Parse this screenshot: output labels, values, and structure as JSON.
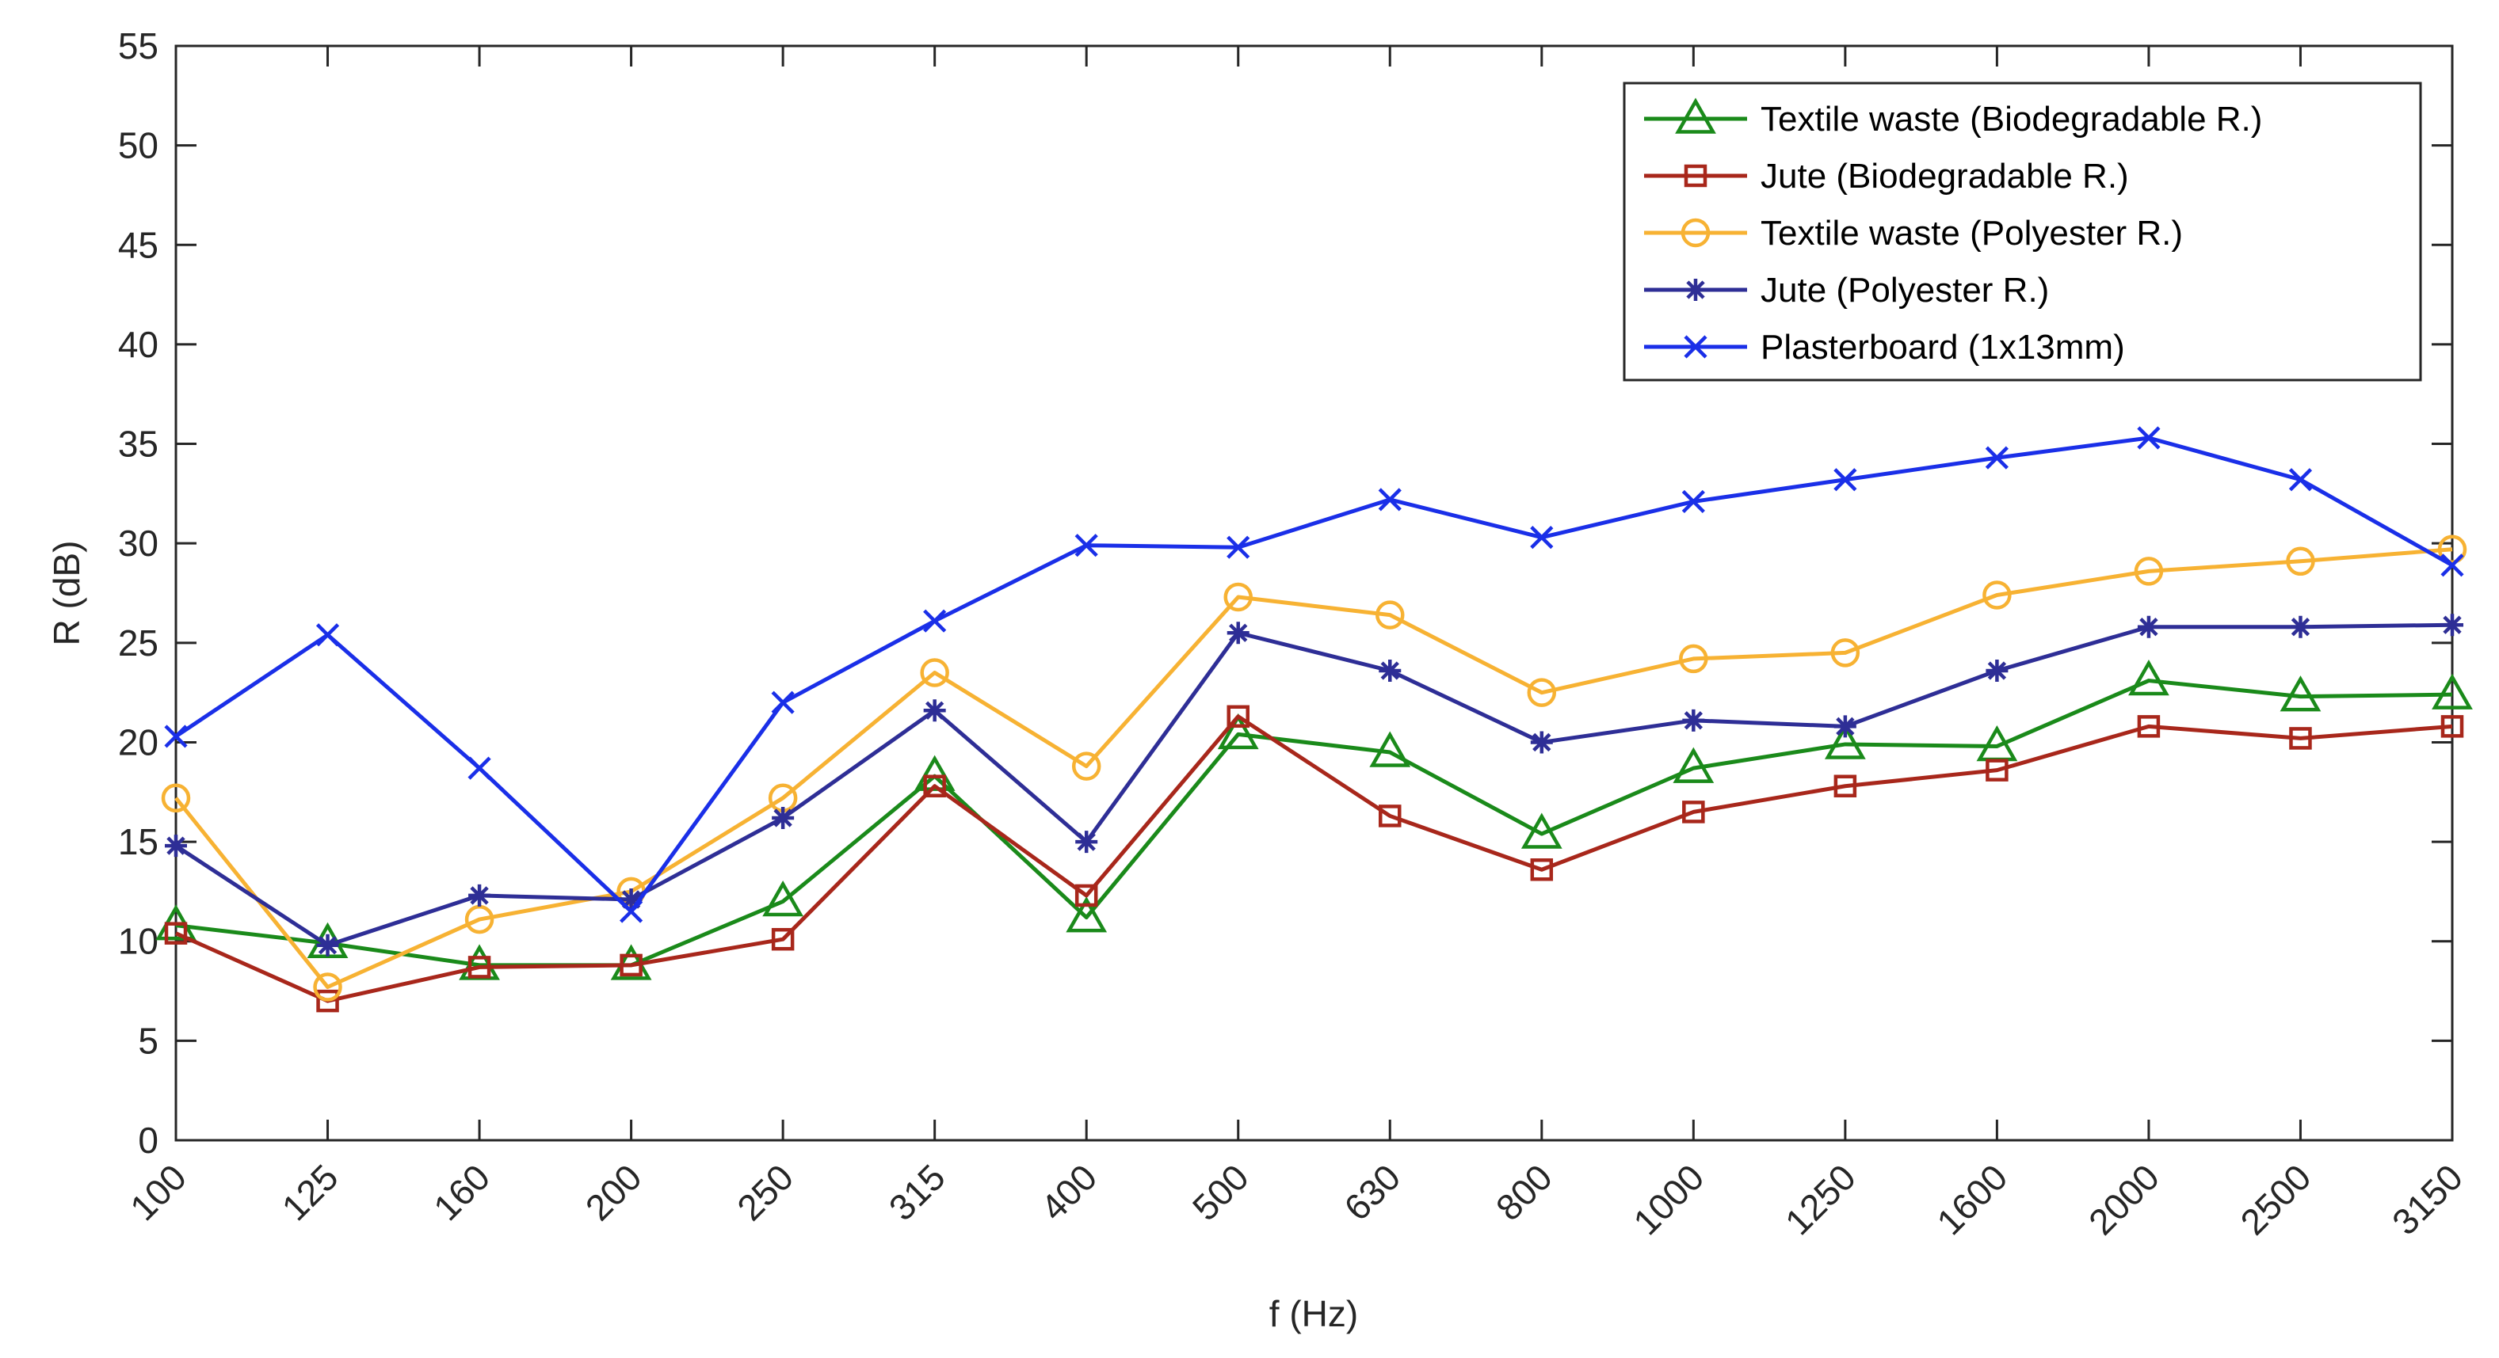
{
  "chart_data": {
    "type": "line",
    "title": "",
    "xlabel": "f (Hz)",
    "ylabel": "R (dB)",
    "ylim": [
      0,
      55
    ],
    "yticks": [
      0,
      5,
      10,
      15,
      20,
      25,
      30,
      35,
      40,
      45,
      50,
      55
    ],
    "grid": false,
    "legend_position": "top-right",
    "categories": [
      "100",
      "125",
      "160",
      "200",
      "250",
      "315",
      "400",
      "500",
      "630",
      "800",
      "1000",
      "1250",
      "1600",
      "2000",
      "2500",
      "3150"
    ],
    "series": [
      {
        "name": "Textile waste (Biodegradable R.)",
        "color": "#1a8a1a",
        "marker": "triangle",
        "values": [
          10.8,
          9.9,
          8.8,
          8.8,
          12.0,
          18.3,
          11.2,
          20.4,
          19.5,
          15.4,
          18.7,
          19.9,
          19.8,
          23.1,
          22.3,
          22.4
        ]
      },
      {
        "name": "Jute (Biodegradable R.)",
        "color": "#a8271b",
        "marker": "square",
        "values": [
          10.4,
          7.0,
          8.7,
          8.8,
          10.1,
          17.8,
          12.3,
          21.3,
          16.3,
          13.6,
          16.5,
          17.8,
          18.6,
          20.8,
          20.2,
          20.8
        ]
      },
      {
        "name": "Textile waste (Polyester R.)",
        "color": "#f7b233",
        "marker": "circle",
        "values": [
          17.2,
          7.7,
          11.1,
          12.5,
          17.2,
          23.5,
          18.8,
          27.3,
          26.4,
          22.5,
          24.2,
          24.5,
          27.4,
          28.6,
          29.1,
          29.7
        ]
      },
      {
        "name": "Jute (Polyester R.)",
        "color": "#2e2e96",
        "marker": "asterisk",
        "values": [
          14.8,
          9.8,
          12.3,
          12.1,
          16.2,
          21.6,
          15.0,
          25.5,
          23.6,
          20.0,
          21.1,
          20.8,
          23.6,
          25.8,
          25.8,
          25.9
        ]
      },
      {
        "name": "Plasterboard (1x13mm)",
        "color": "#1a2fe8",
        "marker": "x",
        "values": [
          20.3,
          25.4,
          18.7,
          11.5,
          22.0,
          26.1,
          29.9,
          29.8,
          32.2,
          30.3,
          32.1,
          33.2,
          34.3,
          35.3,
          33.2,
          28.9
        ]
      }
    ]
  }
}
